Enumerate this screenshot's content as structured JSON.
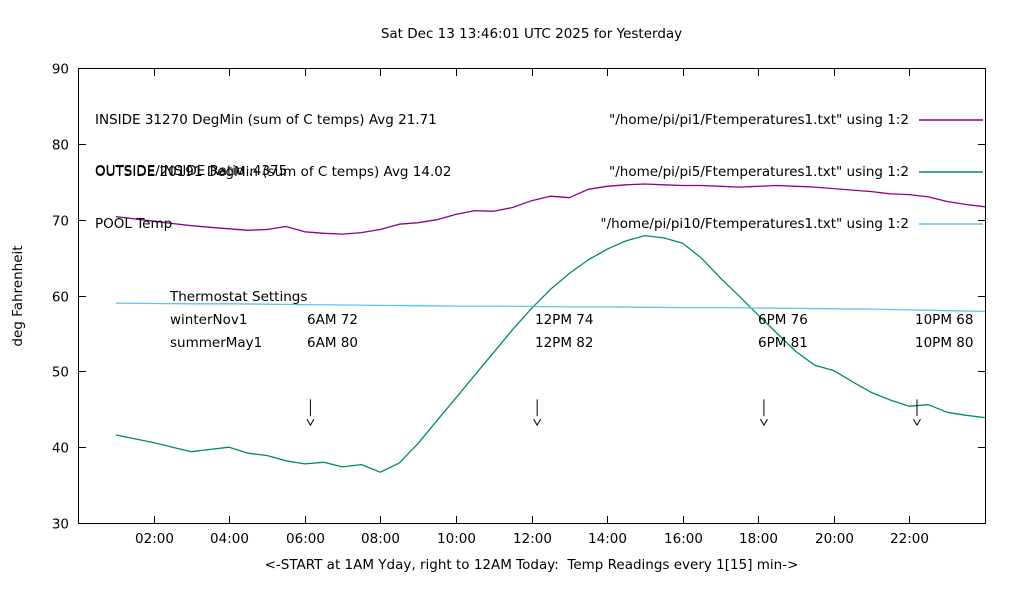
{
  "title": "Sat Dec 13 13:46:01 UTC 2025 for Yesterday",
  "ylabel": "deg Fahrenheit",
  "xlabel": "<-START at 1AM Yday, right to 12AM Today:  Temp Readings every 1[15] min->",
  "legend": {
    "items": [
      {
        "label": "INSIDE 31270 DegMin (sum of C temps) Avg 21.71",
        "file": "\"/home/pi/pi1/Ftemperatures1.txt\" using 1:2",
        "color": "#8b008b"
      },
      {
        "label": "OUTSIDE 20191 DegMin (sum of C temps) Avg 14.02",
        "file": "\"/home/pi/pi5/Ftemperatures1.txt\" using 1:2",
        "color": "#008c5f"
      },
      {
        "label": "POOL Temp",
        "file": "\"/home/pi/pi10/Ftemperatures1.txt\" using 1:2",
        "color": "#5bc6e8"
      }
    ]
  },
  "ratio_text": "OUTSIDE/INSIDE Ratio .4375",
  "thermostat": {
    "title": "Thermostat Settings",
    "rows": [
      {
        "name": "winterNov1",
        "settings": [
          "6AM 72",
          "12PM 74",
          "6PM 76",
          "10PM 68"
        ]
      },
      {
        "name": "summerMay1",
        "settings": [
          "6AM 80",
          "12PM 82",
          "6PM 81",
          "10PM 80"
        ]
      }
    ]
  },
  "chart_data": {
    "type": "line",
    "title": "Sat Dec 13 13:46:01 UTC 2025 for Yesterday",
    "xlabel": "<-START at 1AM Yday, right to 12AM Today:  Temp Readings every 1[15] min->",
    "ylabel": "deg Fahrenheit",
    "x_range": [
      0,
      24
    ],
    "y_range": [
      30,
      90
    ],
    "grid": false,
    "x_ticks": [
      {
        "value": 2,
        "label": "02:00"
      },
      {
        "value": 4,
        "label": "04:00"
      },
      {
        "value": 6,
        "label": "06:00"
      },
      {
        "value": 8,
        "label": "08:00"
      },
      {
        "value": 10,
        "label": "10:00"
      },
      {
        "value": 12,
        "label": "12:00"
      },
      {
        "value": 14,
        "label": "14:00"
      },
      {
        "value": 16,
        "label": "16:00"
      },
      {
        "value": 18,
        "label": "18:00"
      },
      {
        "value": 20,
        "label": "20:00"
      },
      {
        "value": 22,
        "label": "22:00"
      }
    ],
    "y_ticks": [
      30,
      40,
      50,
      60,
      70,
      80,
      90
    ],
    "arrows": [
      {
        "x": 6.15,
        "y_start": 46.3,
        "y_end": 42.9
      },
      {
        "x": 12.15,
        "y_start": 46.3,
        "y_end": 42.9
      },
      {
        "x": 18.15,
        "y_start": 46.3,
        "y_end": 42.9
      },
      {
        "x": 22.2,
        "y_start": 46.3,
        "y_end": 42.9
      }
    ],
    "series": [
      {
        "name": "INSIDE",
        "color": "#8b008b",
        "points": [
          [
            1,
            70.4
          ],
          [
            1.5,
            70.1
          ],
          [
            2,
            69.8
          ],
          [
            2.5,
            69.5
          ],
          [
            3,
            69.2
          ],
          [
            3.5,
            69.0
          ],
          [
            4,
            68.8
          ],
          [
            4.5,
            68.6
          ],
          [
            5,
            68.7
          ],
          [
            5.5,
            69.1
          ],
          [
            6,
            68.4
          ],
          [
            6.5,
            68.2
          ],
          [
            7,
            68.1
          ],
          [
            7.5,
            68.3
          ],
          [
            8,
            68.7
          ],
          [
            8.5,
            69.4
          ],
          [
            9,
            69.6
          ],
          [
            9.5,
            70.0
          ],
          [
            10,
            70.7
          ],
          [
            10.5,
            71.2
          ],
          [
            11,
            71.1
          ],
          [
            11.5,
            71.6
          ],
          [
            12,
            72.5
          ],
          [
            12.5,
            73.1
          ],
          [
            13,
            72.9
          ],
          [
            13.5,
            74.0
          ],
          [
            14,
            74.4
          ],
          [
            14.5,
            74.6
          ],
          [
            15,
            74.7
          ],
          [
            15.5,
            74.6
          ],
          [
            16,
            74.5
          ],
          [
            16.5,
            74.5
          ],
          [
            17,
            74.4
          ],
          [
            17.5,
            74.3
          ],
          [
            18,
            74.4
          ],
          [
            18.5,
            74.5
          ],
          [
            19,
            74.4
          ],
          [
            19.5,
            74.3
          ],
          [
            20,
            74.1
          ],
          [
            20.5,
            73.9
          ],
          [
            21,
            73.7
          ],
          [
            21.5,
            73.4
          ],
          [
            22,
            73.3
          ],
          [
            22.5,
            73.0
          ],
          [
            23,
            72.4
          ],
          [
            23.5,
            72.0
          ],
          [
            24,
            71.7
          ]
        ]
      },
      {
        "name": "OUTSIDE",
        "color": "#008c5f",
        "points": [
          [
            1,
            41.6
          ],
          [
            1.5,
            41.1
          ],
          [
            2,
            40.6
          ],
          [
            2.5,
            40.0
          ],
          [
            3,
            39.4
          ],
          [
            3.5,
            39.7
          ],
          [
            4,
            40.0
          ],
          [
            4.5,
            39.2
          ],
          [
            5,
            38.9
          ],
          [
            5.5,
            38.2
          ],
          [
            6,
            37.8
          ],
          [
            6.5,
            38.0
          ],
          [
            7,
            37.4
          ],
          [
            7.5,
            37.7
          ],
          [
            8,
            36.7
          ],
          [
            8.5,
            37.9
          ],
          [
            9,
            40.5
          ],
          [
            9.5,
            43.5
          ],
          [
            10,
            46.5
          ],
          [
            10.5,
            49.5
          ],
          [
            11,
            52.5
          ],
          [
            11.5,
            55.5
          ],
          [
            12,
            58.3
          ],
          [
            12.5,
            60.8
          ],
          [
            13,
            62.9
          ],
          [
            13.5,
            64.7
          ],
          [
            14,
            66.1
          ],
          [
            14.5,
            67.2
          ],
          [
            15,
            67.9
          ],
          [
            15.5,
            67.6
          ],
          [
            16,
            66.9
          ],
          [
            16.5,
            64.9
          ],
          [
            17,
            62.3
          ],
          [
            17.5,
            59.9
          ],
          [
            18,
            57.4
          ],
          [
            18.5,
            55.0
          ],
          [
            19,
            52.6
          ],
          [
            19.5,
            50.8
          ],
          [
            20,
            50.1
          ],
          [
            20.5,
            48.6
          ],
          [
            21,
            47.2
          ],
          [
            21.5,
            46.2
          ],
          [
            22,
            45.4
          ],
          [
            22.5,
            45.6
          ],
          [
            23,
            44.6
          ],
          [
            23.5,
            44.2
          ],
          [
            24,
            43.9
          ]
        ]
      },
      {
        "name": "POOL",
        "color": "#5bc6e8",
        "points": [
          [
            1,
            59.0
          ],
          [
            2,
            58.95
          ],
          [
            3,
            58.9
          ],
          [
            4,
            58.9
          ],
          [
            5,
            58.85
          ],
          [
            6,
            58.8
          ],
          [
            7,
            58.75
          ],
          [
            8,
            58.7
          ],
          [
            9,
            58.65
          ],
          [
            10,
            58.6
          ],
          [
            11,
            58.6
          ],
          [
            12,
            58.55
          ],
          [
            13,
            58.5
          ],
          [
            14,
            58.5
          ],
          [
            15,
            58.45
          ],
          [
            16,
            58.4
          ],
          [
            17,
            58.4
          ],
          [
            18,
            58.35
          ],
          [
            19,
            58.3
          ],
          [
            20,
            58.25
          ],
          [
            21,
            58.2
          ],
          [
            22,
            58.1
          ],
          [
            23,
            58.0
          ],
          [
            24,
            57.9
          ]
        ]
      }
    ]
  }
}
